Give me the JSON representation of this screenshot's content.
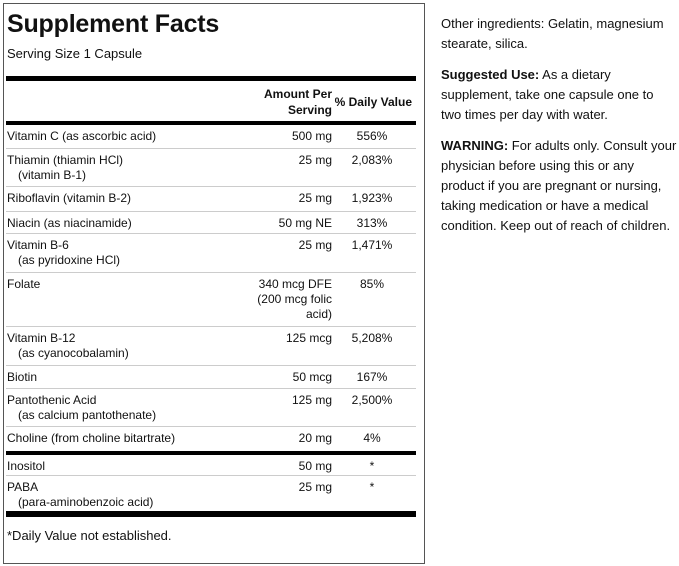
{
  "label": {
    "title": "Supplement Facts",
    "serving_size": "Serving Size 1 Capsule",
    "header": {
      "amount_line1": "Amount Per",
      "amount_line2": "Serving",
      "daily_value": "% Daily Value"
    },
    "rows": [
      {
        "name": "Vitamin C (as ascorbic acid)",
        "sub": "",
        "amount": "500 mg",
        "dv": "556%"
      },
      {
        "name": "Thiamin (thiamin HCl)",
        "sub": "(vitamin B-1)",
        "amount": "25 mg",
        "dv": "2,083%"
      },
      {
        "name": "Riboflavin (vitamin B-2)",
        "sub": "",
        "amount": "25 mg",
        "dv": "1,923%"
      },
      {
        "name": "Niacin (as niacinamide)",
        "sub": "",
        "amount": "50 mg NE",
        "dv": "313%"
      },
      {
        "name": "Vitamin B-6",
        "sub": "(as pyridoxine HCl)",
        "amount": "25 mg",
        "dv": "1,471%"
      },
      {
        "name": "Folate",
        "sub": "",
        "amount": "340 mcg DFE (200 mcg folic acid)",
        "dv": "85%"
      },
      {
        "name": "Vitamin B-12",
        "sub": "(as cyanocobalamin)",
        "amount": "125 mcg",
        "dv": "5,208%"
      },
      {
        "name": "Biotin",
        "sub": "",
        "amount": "50 mcg",
        "dv": "167%"
      },
      {
        "name": "Pantothenic Acid",
        "sub": "(as calcium pantothenate)",
        "amount": "125 mg",
        "dv": "2,500%"
      },
      {
        "name": "Choline (from choline bitartrate)",
        "sub": "",
        "amount": "20 mg",
        "dv": "4%"
      },
      {
        "name": "Inositol",
        "sub": "",
        "amount": "50 mg",
        "dv": "*"
      },
      {
        "name": "PABA",
        "sub": "(para-aminobenzoic acid)",
        "amount": "25 mg",
        "dv": "*"
      }
    ],
    "footnote": "*Daily Value not established."
  },
  "side": {
    "other_ingredients": "Other ingredients: Gelatin, magnesium stearate, silica.",
    "suggested_label": "Suggested Use:",
    "suggested_text": " As a dietary supplement, take one capsule one to two times per day with water.",
    "warning_label": "WARNING:",
    "warning_text": " For adults only. Consult your physician before using this or any product if you are pregnant or nursing, taking medication or have a medical condition. Keep out of reach of children."
  }
}
